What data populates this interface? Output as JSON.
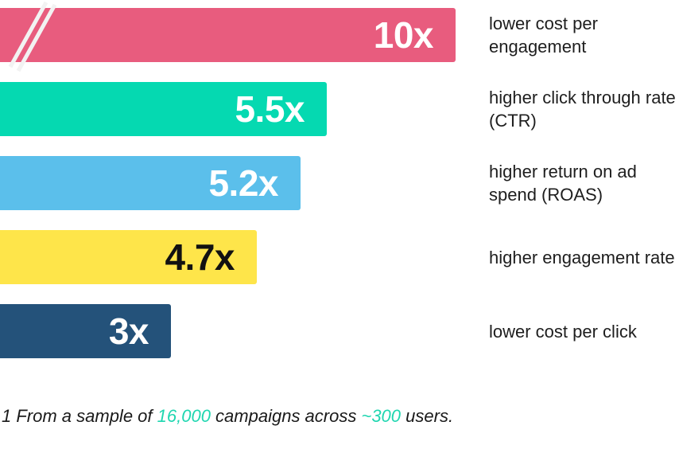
{
  "chart_data": {
    "type": "bar",
    "orientation": "horizontal",
    "categories": [
      "lower cost per engagement",
      "higher click through rate (CTR)",
      "higher return on ad spend (ROAS)",
      "higher engagement rate",
      "lower cost per click"
    ],
    "values": [
      10,
      5.5,
      5.2,
      4.7,
      3
    ],
    "value_labels": [
      "10x",
      "5.5x",
      "5.2x",
      "4.7x",
      "3x"
    ],
    "colors": [
      "#E85C7E",
      "#05D9B1",
      "#5BBFEB",
      "#FEE54A",
      "#24527A"
    ],
    "label_colors": [
      "#FFFFFF",
      "#FFFFFF",
      "#FFFFFF",
      "#111111",
      "#FFFFFF"
    ],
    "title": "",
    "xlabel": "",
    "ylabel": "",
    "grid": false
  },
  "footnote": {
    "prefix": "1 From a sample of ",
    "campaigns": "16,000",
    "middle": " campaigns across ",
    "users": "~300",
    "suffix": " users.",
    "highlight_color": "#1FD6B0"
  }
}
